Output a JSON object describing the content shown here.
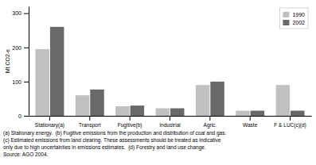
{
  "chart_data": {
    "type": "bar",
    "categories": [
      "Stationary(a)",
      "Transport",
      "Fugitive(b)",
      "Industrial",
      "Agric.",
      "Waste",
      "F & LUC(c)(d)"
    ],
    "series": [
      {
        "name": "1990",
        "color": "#c0c0c0",
        "values": [
          195,
          60,
          28,
          22,
          90,
          15,
          90
        ]
      },
      {
        "name": "2002",
        "color": "#696969",
        "values": [
          260,
          77,
          30,
          22,
          100,
          15,
          15
        ]
      }
    ],
    "ylabel": "Mt CO2-e",
    "ylim": [
      0,
      320
    ],
    "yticks": [
      0,
      100,
      200,
      300
    ],
    "legend": "upper right",
    "annotations": [
      "(a) Stationary energy.  (b) Fugitive emissions from the production and distribution of coal and gas.",
      "(c) Estimated emissions from land clearing. These assessments should be treated as indicative",
      "only due to high uncertainties in emissions estimates.  (d) Forestry and land use change.",
      "Source: AGO 2004."
    ]
  }
}
